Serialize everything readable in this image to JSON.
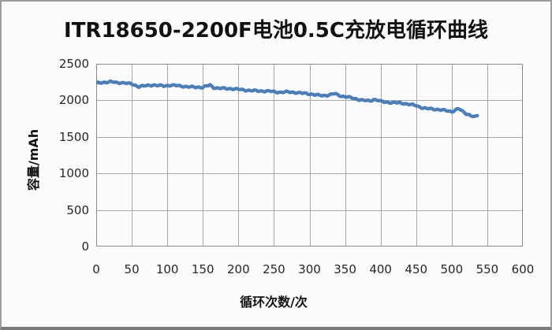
{
  "window": {
    "background_color": "#fcfcfc",
    "frame_border_color": "#9c9c9c",
    "frame_bottom_border_color": "#7b7b7b"
  },
  "chart": {
    "plot_background_color": "#fefefe",
    "plot_border_color": "#8a8a8a",
    "gridline_color": "#a8a8a8",
    "tick_label_color": "#262626",
    "title_color": "#111111"
  },
  "chart_data": {
    "type": "line",
    "title": "ITR18650-2200F电池0.5C充放电循环曲线",
    "xlabel": "循环次数/次",
    "ylabel": "容量/mAh",
    "xlim": [
      0,
      600
    ],
    "ylim": [
      0,
      2500
    ],
    "x_ticks": [
      0,
      50,
      100,
      150,
      200,
      250,
      300,
      350,
      400,
      450,
      500,
      550,
      600
    ],
    "y_ticks": [
      0,
      500,
      1000,
      1500,
      2000,
      2500
    ],
    "grid": true,
    "legend": false,
    "series": [
      {
        "name": "容量",
        "color": "#4a7ebb",
        "line_width": 4.3,
        "x": [
          0,
          5,
          10,
          15,
          20,
          25,
          30,
          35,
          40,
          45,
          50,
          55,
          60,
          65,
          70,
          75,
          80,
          85,
          90,
          95,
          100,
          105,
          110,
          115,
          120,
          125,
          130,
          135,
          140,
          145,
          150,
          155,
          160,
          165,
          170,
          175,
          180,
          185,
          190,
          195,
          200,
          205,
          210,
          215,
          220,
          225,
          230,
          235,
          240,
          245,
          250,
          255,
          260,
          265,
          270,
          275,
          280,
          285,
          290,
          295,
          300,
          305,
          310,
          315,
          320,
          325,
          330,
          335,
          340,
          345,
          350,
          355,
          360,
          365,
          370,
          375,
          380,
          385,
          390,
          395,
          400,
          405,
          410,
          415,
          420,
          425,
          430,
          435,
          440,
          445,
          450,
          455,
          460,
          465,
          470,
          475,
          480,
          485,
          490,
          495,
          500,
          505,
          510,
          515,
          520,
          525,
          530,
          533,
          536
        ],
        "y": [
          2235,
          2240,
          2246,
          2250,
          2253,
          2248,
          2240,
          2243,
          2237,
          2230,
          2225,
          2205,
          2188,
          2195,
          2200,
          2206,
          2210,
          2204,
          2200,
          2198,
          2202,
          2207,
          2204,
          2200,
          2195,
          2190,
          2184,
          2182,
          2180,
          2182,
          2178,
          2195,
          2208,
          2175,
          2168,
          2165,
          2163,
          2160,
          2160,
          2156,
          2150,
          2145,
          2140,
          2136,
          2132,
          2130,
          2128,
          2127,
          2126,
          2124,
          2118,
          2113,
          2110,
          2112,
          2115,
          2112,
          2108,
          2102,
          2098,
          2095,
          2088,
          2080,
          2072,
          2068,
          2066,
          2070,
          2078,
          2092,
          2075,
          2058,
          2050,
          2042,
          2032,
          2022,
          2010,
          2000,
          1996,
          1993,
          2012,
          2005,
          1985,
          1978,
          1974,
          1970,
          1968,
          1965,
          1962,
          1955,
          1945,
          1938,
          1928,
          1910,
          1895,
          1888,
          1884,
          1880,
          1876,
          1870,
          1862,
          1855,
          1845,
          1868,
          1885,
          1850,
          1820,
          1800,
          1780,
          1772,
          1790
        ]
      }
    ]
  }
}
